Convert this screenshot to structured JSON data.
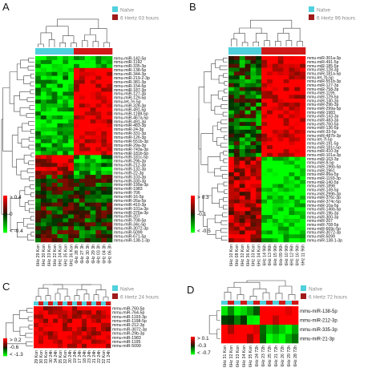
{
  "panels": [
    {
      "letter": "A",
      "legend": [
        {
          "label": "Naïve",
          "color": "#4fd0dc"
        },
        {
          "label": "6 Hertz 03 hours",
          "color": "#a01a1a"
        }
      ],
      "colorbar": {
        "max": "> 0.4",
        "mid": "0",
        "min": "< -0.4"
      },
      "rows": [
        "mmu-miR-142-5p",
        "mmu-miR-1192",
        "mmu-miR-335-3p",
        "mmu-miR-138-5p",
        "mmu-miR-344-3p",
        "mmu-miR-219-2-3p",
        "mmu-miR-381-3p",
        "mmu-miR-154-5p",
        "mmu-miR-187-3p",
        "mmu-miR-127-3p",
        "mmu-miR-129-5p",
        "mmu-let-7e-5p",
        "mmu-miR-328-3p",
        "mmu-miR-491-5p",
        "mmu-miR-1198-5p",
        "mmu-miR-467a-5p",
        "mmu-miR-491-3p",
        "mmu-miR-483-3p",
        "mmu-miR-24-3p",
        "mmu-miR-331-3p",
        "mmu-miR-126-3p",
        "mmu-miR-551b-3p",
        "mmu-miR-29a-3p",
        "mmu-miR-743a-3p",
        "mmu-miR-181b-5p",
        "mmu-miR-181c-5p",
        "mmu-miR-29b-3p",
        "mmu-miR-212-3p",
        "mmu-miR-132-3p",
        "mmu-miR-22-3p",
        "mmu-miR-103-3p",
        "mmu-miR-330-3p",
        "mmu-miR-199a-3p",
        "mmu-miR-1983",
        "mmu-miR-706",
        "mmu-miR-16-5p",
        "mmu-miR-26a-5p",
        "mmu-miR-410-3p",
        "mmu-miR-101a-3p",
        "mmu-miR-376a-3p",
        "mmu-miR-207",
        "mmu-miR-708-5p",
        "mmu-miR-34c-5p",
        "mmu-miR-3072-3p",
        "mmu-miR-5099",
        "mmu-miR-671-5p",
        "mmu-miR-138-1-3p"
      ],
      "cols": [
        "6Hz 29 Kon",
        "6Hz 30 Kon",
        "6Hz 33 Kon",
        "6Hz 32 Kon",
        "6Hz 34 Kon",
        "6Hz 35 Kon",
        "6Hz 36 Kon",
        "6Hz 28 3h",
        "6Hz 27 3h",
        "6Hz 30 3h",
        "6Hz 29 3h",
        "6Hz 03 3h",
        "6Hz 04 3h",
        "6Hz 06 3h"
      ]
    },
    {
      "letter": "B",
      "legend": [
        {
          "label": "Naïve",
          "color": "#4fd0dc"
        },
        {
          "label": "6 Hertz 96 hours",
          "color": "#a01a1a"
        }
      ],
      "colorbar": {
        "max": "> 0.3",
        "mid": "-0.1",
        "min": "< -0.5"
      },
      "rows": [
        "mmu-miR-301a-3p",
        "mmu-miR-491-5p",
        "mmu-miR-185-5p",
        "mmu-miR-128-3p",
        "mmu-miR-181a-5p",
        "mmu-let-7b-5p",
        "mmu-miR-551b-3p",
        "mmu-miR-127-3p",
        "mmu-miR-758-3p",
        "mmu-miR-1195",
        "mmu-miR-129-5p",
        "mmu-miR-140-3p",
        "mmu-miR-29b-3p",
        "mmu-miR-299a-5p",
        "mmu-miR-1983",
        "mmu-miR-143-3p",
        "mmu-miR-483-3p",
        "mmu-miR-760-5p",
        "mmu-miR-136-5p",
        "mmu-miR-33-5p",
        "mmu-miR-487b-3p",
        "mmu-let-7f-5p",
        "mmu-miR-191-5p",
        "mmu-miR-181c-5p",
        "mmu-miR-410-3p",
        "mmu-miR-101a-3p",
        "mmu-miR-103-3p",
        "mmu-miR-9-5p",
        "mmu-miR-196b-5p",
        "mmu-miR-1961",
        "mmu-miR-99a-5p",
        "mmu-miR-1193-3p",
        "mmu-miR-140-5p",
        "mmu-miR-1898",
        "mmu-miR-149-5p",
        "mmu-miR-299b-3p",
        "mmu-miR-376c-3p",
        "mmu-miR-374c-5p",
        "mmu-miR-10a-5p",
        "mmu-miR-146b-5p",
        "mmu-miR-19b-3p",
        "mmu-miR-300-3p",
        "mmu-miR-207",
        "mmu-miR-708-5p",
        "mmu-miR-669c-5p",
        "mmu-miR-3072-3p",
        "mmu-miR-5099",
        "mmu-miR-138-1-3p"
      ],
      "long_row_suffix": "mmu-miR-374c-5p",
      "cols": [
        "6Hz 10 Kon",
        "6Hz 08 Kon",
        "6Hz 32 Kon",
        "6Hz 36 Kon",
        "6Hz 33 Kon",
        "6Hz 34 Kon",
        "6Hz 14 96h",
        "6Hz 13 96h",
        "6Hz 15 96h",
        "6Hz 09 96h",
        "6Hz 10 96h",
        "6Hz 12 96h",
        "6Hz 16 96h",
        "6Hz 11 96h"
      ]
    },
    {
      "letter": "C",
      "legend": [
        {
          "label": "Naïve",
          "color": "#4fd0dc"
        },
        {
          "label": "6 Hertz 24 hours",
          "color": "#a01a1a"
        }
      ],
      "colorbar": {
        "max": "> 0.2",
        "mid": "-0.6",
        "min": "< -1.3"
      },
      "rows": [
        "mmu-miR-760-5p",
        "mmu-miR-764-5p",
        "mmu-miR-1193-3p",
        "mmu-miR-1198-5p",
        "mmu-miR-212-3p",
        "mmu-miR-3072-3p",
        "mmu-miR-29b-3p",
        "mmu-miR-1983",
        "mmu-miR-1195",
        "mmu-miR-5099"
      ],
      "cols": [
        "29 Kon",
        "30 Kon",
        "33 Kon",
        "30 24h",
        "34 24h",
        "35 Kon",
        "32 Kon",
        "20 24h",
        "19 24h",
        "17 24h",
        "18 24h",
        "23 24h",
        "21 24h",
        "22 24h",
        "32 Kon",
        "21 24h"
      ]
    },
    {
      "letter": "D",
      "legend": [
        {
          "label": "Naïve",
          "color": "#4fd0dc"
        },
        {
          "label": "6 Hertz 72 hours",
          "color": "#a01a1a"
        }
      ],
      "colorbar": {
        "max": "> 0.1",
        "mid": "-0.3",
        "min": "< -0.7"
      },
      "rows": [
        "mmu-miR-138-5p",
        "mmu-miR-212-3p",
        "mmu-miR-335-3p",
        "mmu-miR-21-3p"
      ],
      "cols": [
        "6Hz 31 Kon",
        "6Hz 32 Kon",
        "6Hz 33 Kon",
        "6Hz 34 Kon",
        "6Hz 35 Kon",
        "6Hz 24 72h",
        "6Hz 23 72h",
        "6Hz 25 72h",
        "6Hz 21 72h",
        "6Hz 26 72h",
        "6Hz 29 72h",
        "6Hz 28 72h"
      ]
    }
  ],
  "chart_data": [
    {
      "type": "heatmap",
      "panel": "A",
      "n_rows": 47,
      "columns": [
        "6Hz 29 Kon",
        "6Hz 30 Kon",
        "6Hz 33 Kon",
        "6Hz 32 Kon",
        "6Hz 34 Kon",
        "6Hz 35 Kon",
        "6Hz 36 Kon",
        "6Hz 28 3h",
        "6Hz 27 3h",
        "6Hz 30 3h",
        "6Hz 29 3h",
        "6Hz 03 3h",
        "6Hz 04 3h",
        "6Hz 06 3h"
      ],
      "groups": [
        "Naïve",
        "Naïve",
        "Naïve",
        "Naïve",
        "Naïve",
        "Naïve",
        "Naïve",
        "6 Hertz 03 hours",
        "6 Hertz 03 hours",
        "6 Hertz 03 hours",
        "6 Hertz 03 hours",
        "6 Hertz 03 hours",
        "6 Hertz 03 hours",
        "6 Hertz 03 hours"
      ],
      "blocks": [
        {
          "rows": [
            0,
            3
          ],
          "naive": -0.35,
          "treated": -0.35
        },
        {
          "rows": [
            3,
            25
          ],
          "naive": -0.3,
          "treated": 0.4
        },
        {
          "rows": [
            25,
            30
          ],
          "naive": 0.3,
          "treated": -0.25
        },
        {
          "rows": [
            30,
            47
          ],
          "naive": 0.0,
          "treated": -0.05
        }
      ],
      "color_scale": {
        "min": -0.4,
        "mid": 0,
        "max": 0.4
      }
    },
    {
      "type": "heatmap",
      "panel": "B",
      "n_rows": 48,
      "columns": [
        "6Hz 10 Kon",
        "6Hz 08 Kon",
        "6Hz 32 Kon",
        "6Hz 36 Kon",
        "6Hz 33 Kon",
        "6Hz 34 Kon",
        "6Hz 14 96h",
        "6Hz 13 96h",
        "6Hz 15 96h",
        "6Hz 09 96h",
        "6Hz 10 96h",
        "6Hz 12 96h",
        "6Hz 16 96h",
        "6Hz 11 96h"
      ],
      "groups": [
        "Naïve",
        "Naïve",
        "Naïve",
        "Naïve",
        "Naïve",
        "Naïve",
        "6 Hertz 96 hours",
        "6 Hertz 96 hours",
        "6 Hertz 96 hours",
        "6 Hertz 96 hours",
        "6 Hertz 96 hours",
        "6 Hertz 96 hours",
        "6 Hertz 96 hours",
        "6 Hertz 96 hours"
      ],
      "blocks": [
        {
          "rows": [
            0,
            26
          ],
          "naive": -0.2,
          "treated": 0.3
        },
        {
          "rows": [
            26,
            48
          ],
          "naive": 0.15,
          "treated": -0.5
        }
      ],
      "color_scale": {
        "min": -0.5,
        "mid": -0.1,
        "max": 0.3
      }
    },
    {
      "type": "heatmap",
      "panel": "C",
      "n_rows": 10,
      "columns": [
        "29 Kon",
        "30 Kon",
        "33 Kon",
        "30 24h",
        "34 24h",
        "35 Kon",
        "32 Kon",
        "20 24h",
        "19 24h",
        "17 24h",
        "18 24h",
        "23 24h",
        "21 24h",
        "22 24h",
        "32 Kon",
        "21 24h"
      ],
      "blocks": [
        {
          "rows": [
            0,
            10
          ],
          "naive": 0.1,
          "treated": 0.05
        }
      ],
      "color_scale": {
        "min": -1.3,
        "mid": -0.6,
        "max": 0.2
      }
    },
    {
      "type": "heatmap",
      "panel": "D",
      "n_rows": 4,
      "rows": [
        "mmu-miR-138-5p",
        "mmu-miR-212-3p",
        "mmu-miR-335-3p",
        "mmu-miR-21-3p"
      ],
      "columns": [
        "6Hz 31 Kon",
        "6Hz 32 Kon",
        "6Hz 33 Kon",
        "6Hz 34 Kon",
        "6Hz 35 Kon",
        "6Hz 24 72h",
        "6Hz 23 72h",
        "6Hz 25 72h",
        "6Hz 21 72h",
        "6Hz 26 72h",
        "6Hz 29 72h",
        "6Hz 28 72h"
      ],
      "blocks": [
        {
          "rows": [
            0,
            2
          ],
          "naive": -0.5,
          "treated": 0.1
        },
        {
          "rows": [
            2,
            4
          ],
          "naive": 0.1,
          "treated": -0.6
        }
      ],
      "color_scale": {
        "min": -0.7,
        "mid": -0.3,
        "max": 0.1
      }
    }
  ]
}
